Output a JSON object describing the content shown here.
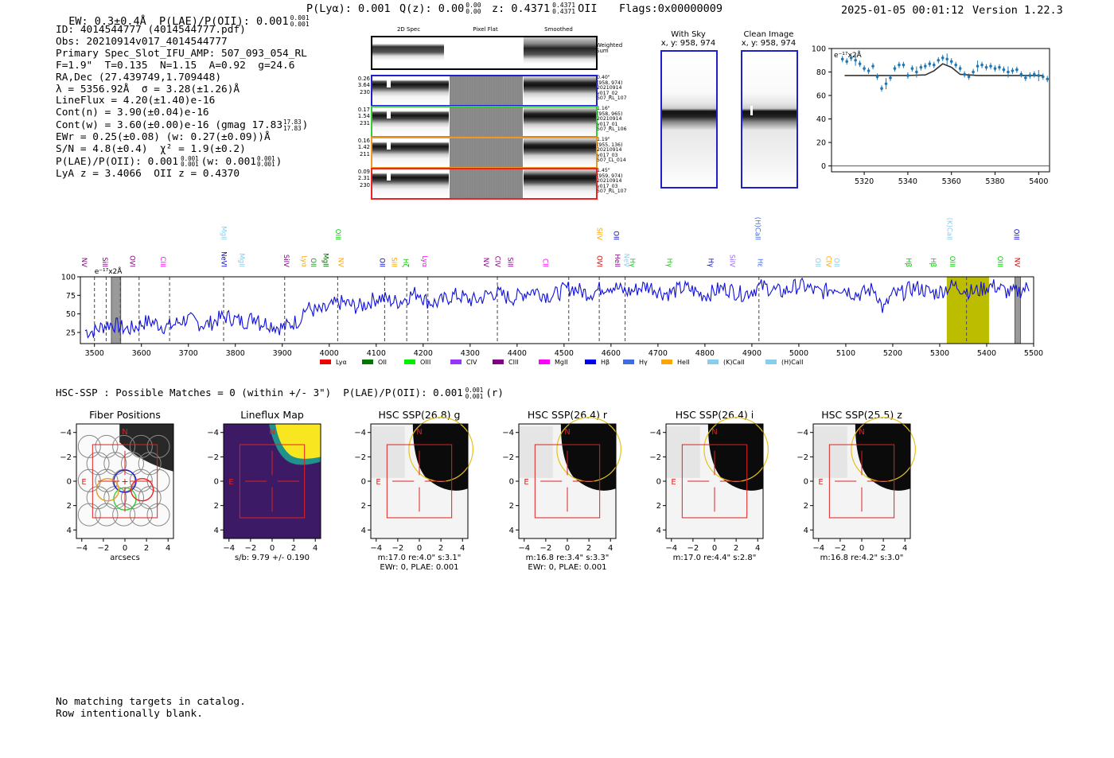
{
  "header": {
    "left": "EW: 0.3±0.4Å  P(LAE)/P(OII): 0.001",
    "left_sup": "0.001",
    "left_sub": "0.001",
    "plya": "P(Lyα): 0.001",
    "qz": "Q(z): 0.00",
    "qz_sup": "0.00",
    "qz_sub": "0.00",
    "z": "z: 0.4371",
    "z_sup": "0.4371",
    "z_sub": "0.4371",
    "z_line": "OII",
    "flags": "Flags:0x00000009",
    "datetime": "2025-01-05 00:01:12",
    "version": "Version 1.22.3"
  },
  "info": {
    "id": "ID: 4014544777 (4014544777.pdf)",
    "obs": "Obs: 20210914v017_4014544777",
    "primary": "Primary Spec_Slot_IFU_AMP: 507_093_054_RL",
    "params": "F=1.9\"  T=0.135  N=1.15  A=0.92  g=24.6",
    "radec": "RA,Dec (27.439749,1.709448)",
    "lambda": "λ = 5356.92Å  σ = 3.28(±1.26)Å",
    "lineflux": "LineFlux = 4.20(±1.40)e-16",
    "contn": "Cont(n) = 3.90(±0.04)e-16",
    "contw": "Cont(w) = 3.60(±0.00)e-16 (gmag 17.83",
    "contw_sup": "17.83",
    "contw_sub": "17.83",
    "ewr": "EWr = 0.25(±0.08) (w: 0.27(±0.09))Å",
    "sn": "S/N = 4.8(±0.4)  χ² = 1.9(±0.2)",
    "plae": "P(LAE)/P(OII): 0.001",
    "plae_sup1": "0.001",
    "plae_sub1": "0.001",
    "plae_w": "(w: 0.001",
    "plae_sup2": "0.001",
    "plae_sub2": "0.001",
    "lya": "LyA z = 3.4066  OII z = 0.4370"
  },
  "cutouts": {
    "col_labels": [
      "2D Spec",
      "Pixel Flat",
      "Smoothed"
    ],
    "weighted_sum": "Weighted Sum",
    "rows": [
      {
        "left": [
          "0.26",
          "3.64",
          "230"
        ],
        "right": [
          "0.40\"",
          "(958, 974)",
          "20210914",
          "v017_02",
          "507_RL_107"
        ],
        "color": "#1f1fcc"
      },
      {
        "left": [
          "0.17",
          "1.54",
          "231"
        ],
        "right": [
          "1.16\"",
          "(958, 965)",
          "20210914",
          "v017_01",
          "507_RL_106"
        ],
        "color": "#33cc33"
      },
      {
        "left": [
          "0.16",
          "1.42",
          "211"
        ],
        "right": [
          "1.19\"",
          "(955, 136)",
          "20210914",
          "v017_03",
          "507_LL_014"
        ],
        "color": "#ee9922"
      },
      {
        "left": [
          "0.09",
          "2.31",
          "230"
        ],
        "right": [
          "1.45\"",
          "(959, 974)",
          "20210914",
          "v017_03",
          "507_RL_107"
        ],
        "color": "#ee2222"
      }
    ]
  },
  "sky_images": {
    "with_sky_title": "With Sky",
    "with_sky_coords": "x, y: 958, 974",
    "clean_title": "Clean Image",
    "clean_coords": "x, y: 958, 974"
  },
  "zoom_chart": {
    "type": "scatter",
    "scale_label": "e⁻¹⁷x2Å",
    "xlim": [
      5305,
      5405
    ],
    "ylim": [
      -5,
      100
    ],
    "xticks": [
      5320,
      5340,
      5360,
      5380,
      5400
    ],
    "yticks": [
      0,
      20,
      40,
      60,
      80,
      100
    ],
    "x": [
      5310,
      5312,
      5314,
      5316,
      5318,
      5320,
      5322,
      5324,
      5326,
      5328,
      5330,
      5332,
      5334,
      5336,
      5338,
      5340,
      5342,
      5344,
      5346,
      5348,
      5350,
      5352,
      5354,
      5356,
      5358,
      5360,
      5362,
      5364,
      5366,
      5368,
      5370,
      5372,
      5374,
      5376,
      5378,
      5380,
      5382,
      5384,
      5386,
      5388,
      5390,
      5392,
      5394,
      5396,
      5398,
      5400,
      5402,
      5404
    ],
    "y": [
      91,
      89,
      92,
      90,
      87,
      83,
      81,
      85,
      76,
      66,
      70,
      75,
      83,
      86,
      86,
      77,
      83,
      80,
      84,
      85,
      87,
      86,
      90,
      92,
      91,
      89,
      86,
      83,
      78,
      76,
      80,
      85,
      86,
      84,
      85,
      83,
      84,
      82,
      80,
      81,
      82,
      78,
      75,
      77,
      78,
      77,
      76,
      74
    ],
    "fit_x": [
      5311,
      5340,
      5348,
      5352,
      5356,
      5360,
      5364,
      5372,
      5402
    ],
    "fit_y": [
      77,
      77,
      77.5,
      81,
      87,
      84,
      78,
      77,
      77
    ]
  },
  "spectrum": {
    "type": "line",
    "scale_label": "e⁻¹⁷x2Å",
    "xlim": [
      3470,
      5500
    ],
    "ylim": [
      10,
      100
    ],
    "xticks": [
      3500,
      3600,
      3700,
      3800,
      3900,
      4000,
      4100,
      4200,
      4300,
      4400,
      4500,
      4600,
      4700,
      4800,
      4900,
      5000,
      5100,
      5200,
      5300,
      5400,
      5500
    ],
    "yticks": [
      25,
      50,
      75,
      100
    ],
    "line_labels": [
      {
        "text": "NV",
        "x": 3478,
        "color": "#800080",
        "row": 0
      },
      {
        "text": "SiII",
        "x": 3522,
        "color": "#800080",
        "row": 0
      },
      {
        "text": "OVI",
        "x": 3580,
        "color": "#800080",
        "row": 0
      },
      {
        "text": "CIII",
        "x": 3645,
        "color": "#ff00ff",
        "row": 0
      },
      {
        "text": "MgII",
        "x": 3775,
        "color": "#87ceeb",
        "row": 1
      },
      {
        "text": "NeVI",
        "x": 3775,
        "color": "#0000cc",
        "row": 0
      },
      {
        "text": "MgII",
        "x": 3813,
        "color": "#87ceeb",
        "row": 0
      },
      {
        "text": "SiIV",
        "x": 3908,
        "color": "#800080",
        "row": 0
      },
      {
        "text": "Lyα",
        "x": 3946,
        "color": "#ffa500",
        "row": 0
      },
      {
        "text": "OII",
        "x": 3966,
        "color": "#228b22",
        "row": 0
      },
      {
        "text": "MgII",
        "x": 3992,
        "color": "#006400",
        "row": 0
      },
      {
        "text": "OIII",
        "x": 4018,
        "color": "#00cc00",
        "row": 1
      },
      {
        "text": "NV",
        "x": 4024,
        "color": "#ffa500",
        "row": 0
      },
      {
        "text": "OII",
        "x": 4112,
        "color": "#0000cc",
        "row": 0
      },
      {
        "text": "SiII",
        "x": 4138,
        "color": "#ffa500",
        "row": 0
      },
      {
        "text": "Hζ",
        "x": 4162,
        "color": "#00cc00",
        "row": 0
      },
      {
        "text": "Lyα",
        "x": 4203,
        "color": "#ff00ff",
        "row": 0
      },
      {
        "text": "NV",
        "x": 4333,
        "color": "#800080",
        "row": 0
      },
      {
        "text": "CIV",
        "x": 4358,
        "color": "#800080",
        "row": 0
      },
      {
        "text": "SiII",
        "x": 4385,
        "color": "#800080",
        "row": 0
      },
      {
        "text": "CII",
        "x": 4460,
        "color": "#ff00ff",
        "row": 0
      },
      {
        "text": "OVI",
        "x": 4575,
        "color": "#cc0000",
        "row": 0
      },
      {
        "text": "SiIV",
        "x": 4575,
        "color": "#ffa500",
        "row": 1
      },
      {
        "text": "OII",
        "x": 4610,
        "color": "#0000cc",
        "row": 1
      },
      {
        "text": "HeII",
        "x": 4613,
        "color": "#800080",
        "row": 0
      },
      {
        "text": "NeV",
        "x": 4632,
        "color": "#87ceeb",
        "row": 0
      },
      {
        "text": "Hγ",
        "x": 4645,
        "color": "#00cc00",
        "row": 0
      },
      {
        "text": "Hγ",
        "x": 4724,
        "color": "#00cc00",
        "row": 0
      },
      {
        "text": "Hγ",
        "x": 4812,
        "color": "#0000cc",
        "row": 0
      },
      {
        "text": "SiIV",
        "x": 4858,
        "color": "#9966ff",
        "row": 0
      },
      {
        "text": "(H)CaII",
        "x": 4912,
        "color": "#4169e1",
        "row": 1
      },
      {
        "text": "Hε",
        "x": 4917,
        "color": "#4169e1",
        "row": 0
      },
      {
        "text": "OII",
        "x": 5040,
        "color": "#87ceeb",
        "row": 0
      },
      {
        "text": "CIV",
        "x": 5063,
        "color": "#ffa500",
        "row": 0
      },
      {
        "text": "OII",
        "x": 5080,
        "color": "#87ceeb",
        "row": 0
      },
      {
        "text": "Hβ",
        "x": 5233,
        "color": "#00cc00",
        "row": 0
      },
      {
        "text": "Hβ",
        "x": 5286,
        "color": "#00cc00",
        "row": 0
      },
      {
        "text": "(K)CaII",
        "x": 5320,
        "color": "#87ceeb",
        "row": 1
      },
      {
        "text": "OIII",
        "x": 5326,
        "color": "#00cc00",
        "row": 0
      },
      {
        "text": "OIII",
        "x": 5428,
        "color": "#00cc00",
        "row": 0
      },
      {
        "text": "OIII",
        "x": 5463,
        "color": "#0000cc",
        "row": 1
      },
      {
        "text": "NV",
        "x": 5464,
        "color": "#cc0000",
        "row": 0
      }
    ],
    "dashed_x": [
      3500,
      3525,
      3555,
      3595,
      3660,
      3775,
      3905,
      4018,
      4118,
      4165,
      4210,
      4358,
      4510,
      4575,
      4630,
      4915,
      5357
    ],
    "shaded_band": [
      5315,
      5405
    ],
    "hatched_regions": [
      [
        3536,
        3556
      ],
      [
        5460,
        5472
      ]
    ],
    "legend": [
      {
        "name": "Lyα",
        "color": "#ee0000"
      },
      {
        "name": "OII",
        "color": "#007700"
      },
      {
        "name": "OIII",
        "color": "#00ee00"
      },
      {
        "name": "CIV",
        "color": "#9933ff"
      },
      {
        "name": "CIII",
        "color": "#800080"
      },
      {
        "name": "MgII",
        "color": "#ff00ff"
      },
      {
        "name": "Hβ",
        "color": "#0000ee"
      },
      {
        "name": "Hγ",
        "color": "#4169e1"
      },
      {
        "name": "HeII",
        "color": "#ffa500"
      },
      {
        "name": "(K)CaII",
        "color": "#87ceeb"
      },
      {
        "name": "(H)CaII",
        "color": "#87ceeb"
      }
    ]
  },
  "hsc": {
    "title": "HSC-SSP : Possible Matches = 0 (within +/- 3\")  P(LAE)/P(OII): 0.001",
    "title_sup": "0.001",
    "title_sub": "0.001",
    "title_band": "(r)",
    "panels": [
      {
        "title": "Fiber Positions",
        "caption1": "arcsecs",
        "caption2": ""
      },
      {
        "title": "Lineflux Map",
        "caption1": "s/b: 9.79 +/- 0.190",
        "caption2": ""
      },
      {
        "title": "HSC SSP(26.8) g",
        "caption1": "m:17.0  re:4.0\"  s:3.1\"",
        "caption2": "EWr: 0, PLAE: 0.001"
      },
      {
        "title": "HSC SSP(26.4) r",
        "caption1": "m:16.8  re:3.4\"  s:3.3\"",
        "caption2": "EWr: 0, PLAE: 0.001"
      },
      {
        "title": "HSC SSP(26.4) i",
        "caption1": "m:17.0  re:4.4\"  s:2.8\"",
        "caption2": ""
      },
      {
        "title": "HSC SSP(25.5) z",
        "caption1": "m:16.8  re:4.2\"  s:3.0\"",
        "caption2": ""
      }
    ],
    "axis_ticks": [
      "−4",
      "−2",
      "0",
      "2",
      "4"
    ],
    "north": "N",
    "east": "E"
  },
  "footer": {
    "line1": "No matching targets in catalog.",
    "line2": "Row intentionally blank."
  }
}
